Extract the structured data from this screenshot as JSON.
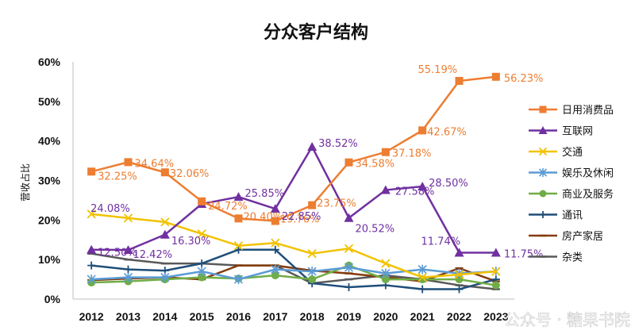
{
  "chart_data": {
    "type": "line",
    "title": "分众客户结构",
    "ylabel": "营收占比",
    "xlabel": "",
    "ylim": [
      0,
      60
    ],
    "y_ticks": [
      "0%",
      "10%",
      "20%",
      "30%",
      "40%",
      "50%",
      "60%"
    ],
    "categories": [
      "2012",
      "2013",
      "2014",
      "2015",
      "2016",
      "2017",
      "2018",
      "2019",
      "2020",
      "2021",
      "2022",
      "2023"
    ],
    "grid": false,
    "legend_position": "right",
    "series": [
      {
        "name": "日用消费品",
        "color": "#ED7D31",
        "marker": "square",
        "values": [
          32.25,
          34.64,
          32.06,
          24.72,
          20.4,
          19.76,
          23.75,
          34.58,
          37.18,
          42.67,
          55.19,
          56.23
        ],
        "labels": [
          "32.25%",
          "34.64%",
          "32.06%",
          "24.72%",
          "20.40%",
          "19.76%",
          "23.75%",
          "34.58%",
          "37.18%",
          "42.67%",
          "55.19%",
          "56.23%"
        ]
      },
      {
        "name": "互联网",
        "color": "#7030A0",
        "marker": "triangle",
        "values": [
          12.5,
          12.42,
          16.3,
          24.08,
          25.85,
          22.85,
          38.52,
          20.52,
          27.58,
          28.5,
          11.74,
          11.75
        ],
        "labels": [
          "12.50%",
          "12.42%",
          "16.30%",
          "24.08%",
          "25.85%",
          "22.85%",
          "38.52%",
          "20.52%",
          "27.58%",
          "28.50%",
          "11.74%",
          "11.75%"
        ]
      },
      {
        "name": "交通",
        "color": "#F2C200",
        "marker": "x",
        "values": [
          21.5,
          20.5,
          19.5,
          16.5,
          13.5,
          14.2,
          11.5,
          12.8,
          9.0,
          5.5,
          6.2,
          7.0
        ]
      },
      {
        "name": "娱乐及休闲",
        "color": "#5B9BD5",
        "marker": "star",
        "values": [
          5.0,
          5.5,
          5.5,
          7.0,
          5.0,
          7.5,
          7.0,
          8.0,
          6.5,
          7.5,
          6.5,
          7.0
        ]
      },
      {
        "name": "商业及服务",
        "color": "#70AD47",
        "marker": "circle",
        "values": [
          4.2,
          4.5,
          5.0,
          5.5,
          5.2,
          6.0,
          5.0,
          8.5,
          5.0,
          5.0,
          5.0,
          3.5
        ]
      },
      {
        "name": "通讯",
        "color": "#1F4E79",
        "marker": "plus",
        "values": [
          8.5,
          7.5,
          7.2,
          9.0,
          12.5,
          12.5,
          4.0,
          3.0,
          3.5,
          2.5,
          2.5,
          5.0
        ]
      },
      {
        "name": "房产家居",
        "color": "#843C0C",
        "marker": "dash",
        "values": [
          4.8,
          5.2,
          5.5,
          5.0,
          8.5,
          8.5,
          7.2,
          6.5,
          5.5,
          4.5,
          7.8,
          4.5
        ]
      },
      {
        "name": "杂类",
        "color": "#595959",
        "marker": "dash",
        "values": [
          11.5,
          10.0,
          9.0,
          9.0,
          8.5,
          8.5,
          4.0,
          5.0,
          6.0,
          5.0,
          3.5,
          2.5
        ]
      }
    ]
  },
  "watermark": "公众号 · 糖果书院"
}
